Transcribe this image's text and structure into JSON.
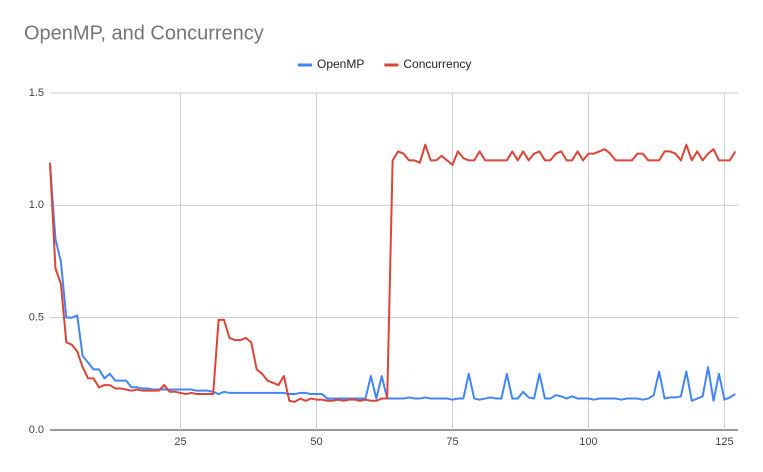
{
  "chart_data": {
    "type": "line",
    "title": "OpenMP, and Concurrency",
    "x": [
      1,
      2,
      3,
      4,
      5,
      6,
      7,
      8,
      9,
      10,
      11,
      12,
      13,
      14,
      15,
      16,
      17,
      18,
      19,
      20,
      21,
      22,
      23,
      24,
      25,
      26,
      27,
      28,
      29,
      30,
      31,
      32,
      33,
      34,
      35,
      36,
      37,
      38,
      39,
      40,
      41,
      42,
      43,
      44,
      45,
      46,
      47,
      48,
      49,
      50,
      51,
      52,
      53,
      54,
      55,
      56,
      57,
      58,
      59,
      60,
      61,
      62,
      63,
      64,
      65,
      66,
      67,
      68,
      69,
      70,
      71,
      72,
      73,
      74,
      75,
      76,
      77,
      78,
      79,
      80,
      81,
      82,
      83,
      84,
      85,
      86,
      87,
      88,
      89,
      90,
      91,
      92,
      93,
      94,
      95,
      96,
      97,
      98,
      99,
      100,
      101,
      102,
      103,
      104,
      105,
      106,
      107,
      108,
      109,
      110,
      111,
      112,
      113,
      114,
      115,
      116,
      117,
      118,
      119,
      120,
      121,
      122,
      123,
      124,
      125,
      126,
      127
    ],
    "series": [
      {
        "name": "OpenMP",
        "color": "#4285f4",
        "values": [
          1.18,
          0.85,
          0.75,
          0.5,
          0.5,
          0.51,
          0.33,
          0.3,
          0.27,
          0.27,
          0.23,
          0.25,
          0.22,
          0.22,
          0.22,
          0.19,
          0.19,
          0.185,
          0.185,
          0.18,
          0.18,
          0.18,
          0.18,
          0.18,
          0.18,
          0.18,
          0.18,
          0.175,
          0.175,
          0.175,
          0.17,
          0.16,
          0.17,
          0.165,
          0.165,
          0.165,
          0.165,
          0.165,
          0.165,
          0.165,
          0.165,
          0.165,
          0.165,
          0.165,
          0.16,
          0.16,
          0.165,
          0.165,
          0.16,
          0.16,
          0.16,
          0.14,
          0.14,
          0.14,
          0.14,
          0.14,
          0.14,
          0.14,
          0.14,
          0.24,
          0.14,
          0.24,
          0.14,
          0.14,
          0.14,
          0.14,
          0.145,
          0.14,
          0.14,
          0.145,
          0.14,
          0.14,
          0.14,
          0.14,
          0.135,
          0.14,
          0.14,
          0.25,
          0.14,
          0.135,
          0.14,
          0.145,
          0.14,
          0.14,
          0.25,
          0.14,
          0.14,
          0.17,
          0.145,
          0.14,
          0.25,
          0.14,
          0.14,
          0.155,
          0.15,
          0.14,
          0.15,
          0.14,
          0.14,
          0.14,
          0.135,
          0.14,
          0.14,
          0.14,
          0.14,
          0.135,
          0.14,
          0.14,
          0.14,
          0.135,
          0.14,
          0.155,
          0.26,
          0.14,
          0.145,
          0.145,
          0.15,
          0.26,
          0.13,
          0.14,
          0.15,
          0.28,
          0.13,
          0.25,
          0.135,
          0.145,
          0.16
        ]
      },
      {
        "name": "Concurrency",
        "color": "#db4437",
        "values": [
          1.19,
          0.72,
          0.65,
          0.39,
          0.38,
          0.35,
          0.28,
          0.23,
          0.23,
          0.19,
          0.2,
          0.2,
          0.185,
          0.185,
          0.18,
          0.175,
          0.18,
          0.175,
          0.175,
          0.175,
          0.175,
          0.2,
          0.17,
          0.17,
          0.165,
          0.16,
          0.165,
          0.16,
          0.16,
          0.16,
          0.16,
          0.49,
          0.49,
          0.41,
          0.4,
          0.4,
          0.41,
          0.39,
          0.27,
          0.25,
          0.22,
          0.21,
          0.2,
          0.24,
          0.13,
          0.125,
          0.14,
          0.13,
          0.14,
          0.135,
          0.135,
          0.13,
          0.13,
          0.135,
          0.13,
          0.135,
          0.135,
          0.13,
          0.135,
          0.13,
          0.13,
          0.14,
          0.14,
          1.2,
          1.24,
          1.23,
          1.2,
          1.2,
          1.19,
          1.27,
          1.2,
          1.2,
          1.22,
          1.2,
          1.18,
          1.24,
          1.21,
          1.2,
          1.2,
          1.24,
          1.2,
          1.2,
          1.2,
          1.2,
          1.2,
          1.24,
          1.2,
          1.24,
          1.2,
          1.23,
          1.24,
          1.2,
          1.2,
          1.23,
          1.24,
          1.2,
          1.2,
          1.24,
          1.2,
          1.23,
          1.23,
          1.24,
          1.25,
          1.23,
          1.2,
          1.2,
          1.2,
          1.2,
          1.23,
          1.23,
          1.2,
          1.2,
          1.2,
          1.24,
          1.24,
          1.23,
          1.2,
          1.27,
          1.2,
          1.24,
          1.2,
          1.23,
          1.25,
          1.2,
          1.2,
          1.2,
          1.24
        ]
      }
    ],
    "xlim": [
      1,
      127.5
    ],
    "xticks": [
      25,
      50,
      75,
      100,
      125
    ],
    "ylim": [
      0,
      1.5
    ],
    "yticks": [
      {
        "value": 0,
        "label": "0.0"
      },
      0.5,
      {
        "value": 1,
        "label": "1.0"
      },
      1.5
    ],
    "grid": true,
    "legend": "top"
  }
}
